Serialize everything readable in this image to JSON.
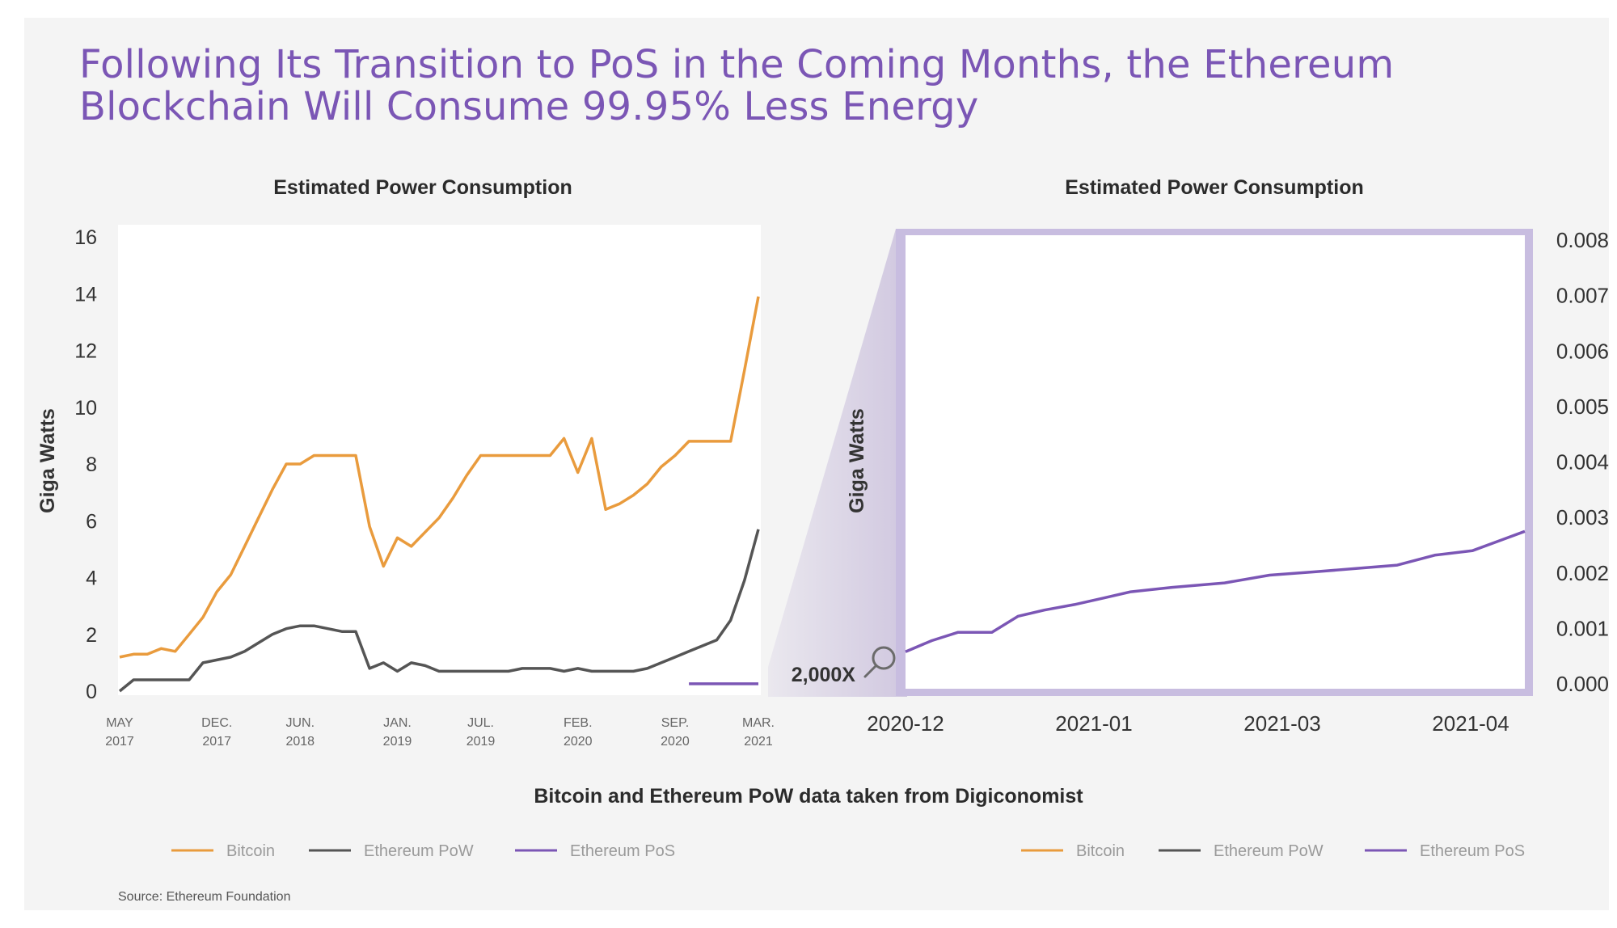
{
  "headline": {
    "line1": "Following Its Transition to PoS in the Coming Months, the Ethereum",
    "line2": "Blockchain Will Consume 99.95% Less Energy"
  },
  "colors": {
    "bitcoin": "#e99b3d",
    "ethereum_pow": "#555555",
    "ethereum_pos": "#7b56b5",
    "title": "#7b56b5"
  },
  "data_source_note": "Bitcoin and Ethereum PoW data taken from Digiconomist",
  "source": "Source: Ethereum Foundation",
  "zoom_label": "2,000X",
  "icons": {
    "zoom": "magnifier-icon"
  },
  "chart_data": [
    {
      "type": "line",
      "title": "Estimated Power Consumption",
      "ylabel": "Giga Watts",
      "xlabel": "",
      "ylim": [
        0,
        16
      ],
      "yticks": [
        0,
        2,
        4,
        6,
        8,
        10,
        12,
        14,
        16
      ],
      "x_ticks": [
        {
          "month": "MAY",
          "year": "2017"
        },
        {
          "month": "DEC.",
          "year": "2017"
        },
        {
          "month": "JUN.",
          "year": "2018"
        },
        {
          "month": "JAN.",
          "year": "2019"
        },
        {
          "month": "JUL.",
          "year": "2019"
        },
        {
          "month": "FEB.",
          "year": "2020"
        },
        {
          "month": "SEP.",
          "year": "2020"
        },
        {
          "month": "MAR.",
          "year": "2021"
        }
      ],
      "xlim": [
        "2017-05",
        "2021-03"
      ],
      "grid": false,
      "legend_position": "bottom-left",
      "series": [
        {
          "name": "Bitcoin",
          "points": [
            [
              "2017-05",
              1.2
            ],
            [
              "2017-06",
              1.3
            ],
            [
              "2017-07",
              1.3
            ],
            [
              "2017-08",
              1.5
            ],
            [
              "2017-09",
              1.4
            ],
            [
              "2017-10",
              2.0
            ],
            [
              "2017-11",
              2.6
            ],
            [
              "2017-12",
              3.5
            ],
            [
              "2018-01",
              4.1
            ],
            [
              "2018-02",
              5.1
            ],
            [
              "2018-03",
              6.1
            ],
            [
              "2018-04",
              7.1
            ],
            [
              "2018-05",
              8.0
            ],
            [
              "2018-06",
              8.0
            ],
            [
              "2018-07",
              8.3
            ],
            [
              "2018-08",
              8.3
            ],
            [
              "2018-09",
              8.3
            ],
            [
              "2018-10",
              8.3
            ],
            [
              "2018-11",
              5.8
            ],
            [
              "2018-12",
              4.4
            ],
            [
              "2019-01",
              5.4
            ],
            [
              "2019-02",
              5.1
            ],
            [
              "2019-03",
              5.6
            ],
            [
              "2019-04",
              6.1
            ],
            [
              "2019-05",
              6.8
            ],
            [
              "2019-06",
              7.6
            ],
            [
              "2019-07",
              8.3
            ],
            [
              "2019-08",
              8.3
            ],
            [
              "2019-09",
              8.3
            ],
            [
              "2019-10",
              8.3
            ],
            [
              "2019-11",
              8.3
            ],
            [
              "2019-12",
              8.3
            ],
            [
              "2020-01",
              8.9
            ],
            [
              "2020-02",
              7.7
            ],
            [
              "2020-03",
              8.9
            ],
            [
              "2020-04",
              6.4
            ],
            [
              "2020-05",
              6.6
            ],
            [
              "2020-06",
              6.9
            ],
            [
              "2020-07",
              7.3
            ],
            [
              "2020-08",
              7.9
            ],
            [
              "2020-09",
              8.3
            ],
            [
              "2020-10",
              8.8
            ],
            [
              "2020-11",
              8.8
            ],
            [
              "2020-12",
              8.8
            ],
            [
              "2021-01",
              8.8
            ],
            [
              "2021-02",
              11.3
            ],
            [
              "2021-03",
              13.9
            ]
          ]
        },
        {
          "name": "Ethereum PoW",
          "points": [
            [
              "2017-05",
              0.0
            ],
            [
              "2017-06",
              0.4
            ],
            [
              "2017-07",
              0.4
            ],
            [
              "2017-08",
              0.4
            ],
            [
              "2017-09",
              0.4
            ],
            [
              "2017-10",
              0.4
            ],
            [
              "2017-11",
              1.0
            ],
            [
              "2017-12",
              1.1
            ],
            [
              "2018-01",
              1.2
            ],
            [
              "2018-02",
              1.4
            ],
            [
              "2018-03",
              1.7
            ],
            [
              "2018-04",
              2.0
            ],
            [
              "2018-05",
              2.2
            ],
            [
              "2018-06",
              2.3
            ],
            [
              "2018-07",
              2.3
            ],
            [
              "2018-08",
              2.2
            ],
            [
              "2018-09",
              2.1
            ],
            [
              "2018-10",
              2.1
            ],
            [
              "2018-11",
              0.8
            ],
            [
              "2018-12",
              1.0
            ],
            [
              "2019-01",
              0.7
            ],
            [
              "2019-02",
              1.0
            ],
            [
              "2019-03",
              0.9
            ],
            [
              "2019-04",
              0.7
            ],
            [
              "2019-05",
              0.7
            ],
            [
              "2019-06",
              0.7
            ],
            [
              "2019-07",
              0.7
            ],
            [
              "2019-08",
              0.7
            ],
            [
              "2019-09",
              0.7
            ],
            [
              "2019-10",
              0.8
            ],
            [
              "2019-11",
              0.8
            ],
            [
              "2019-12",
              0.8
            ],
            [
              "2020-01",
              0.7
            ],
            [
              "2020-02",
              0.8
            ],
            [
              "2020-03",
              0.7
            ],
            [
              "2020-04",
              0.7
            ],
            [
              "2020-05",
              0.7
            ],
            [
              "2020-06",
              0.7
            ],
            [
              "2020-07",
              0.8
            ],
            [
              "2020-08",
              1.0
            ],
            [
              "2020-09",
              1.2
            ],
            [
              "2020-10",
              1.4
            ],
            [
              "2020-11",
              1.6
            ],
            [
              "2020-12",
              1.8
            ],
            [
              "2021-01",
              2.5
            ],
            [
              "2021-02",
              3.9
            ],
            [
              "2021-03",
              5.7
            ]
          ]
        },
        {
          "name": "Ethereum PoS",
          "points": [
            [
              "2020-10",
              0.26
            ],
            [
              "2021-03",
              0.26
            ]
          ]
        }
      ],
      "legend": [
        "Bitcoin",
        "Ethereum PoW",
        "Ethereum PoS"
      ]
    },
    {
      "type": "line",
      "title": "Estimated Power Consumption",
      "ylabel": "Giga Watts",
      "xlabel": "",
      "ylim": [
        0,
        0.008
      ],
      "yticks": [
        "0.000",
        "0.001",
        "0.002",
        "0.003",
        "0.004",
        "0.005",
        "0.006",
        "0.007",
        "0.008"
      ],
      "x_ticks": [
        "2020-12",
        "2021-01",
        "2021-03",
        "2021-04"
      ],
      "y_axis_side": "right",
      "grid": false,
      "legend_position": "bottom-right",
      "series": [
        {
          "name": "Ethereum PoS",
          "points": [
            [
              "2020-12",
              0.00058
            ],
            [
              "2020-12-08",
              0.00078
            ],
            [
              "2020-12-15",
              0.00093
            ],
            [
              "2020-12-24",
              0.00093
            ],
            [
              "2021-01-01",
              0.00122
            ],
            [
              "2021-01-08",
              0.00133
            ],
            [
              "2021-01-16",
              0.00143
            ],
            [
              "2021-01-24",
              0.00155
            ],
            [
              "2021-02-01",
              0.00166
            ],
            [
              "2021-02-12",
              0.00174
            ],
            [
              "2021-02-26",
              0.00182
            ],
            [
              "2021-03-08",
              0.00196
            ],
            [
              "2021-03-20",
              0.00202
            ],
            [
              "2021-04-01",
              0.00208
            ],
            [
              "2021-04-12",
              0.00214
            ],
            [
              "2021-04-22",
              0.00232
            ],
            [
              "2021-05-02",
              0.0024
            ],
            [
              "2021-05-10",
              0.0026
            ],
            [
              "2021-05-16",
              0.00275
            ]
          ]
        }
      ],
      "legend": [
        "Bitcoin",
        "Ethereum PoW",
        "Ethereum PoS"
      ]
    }
  ]
}
